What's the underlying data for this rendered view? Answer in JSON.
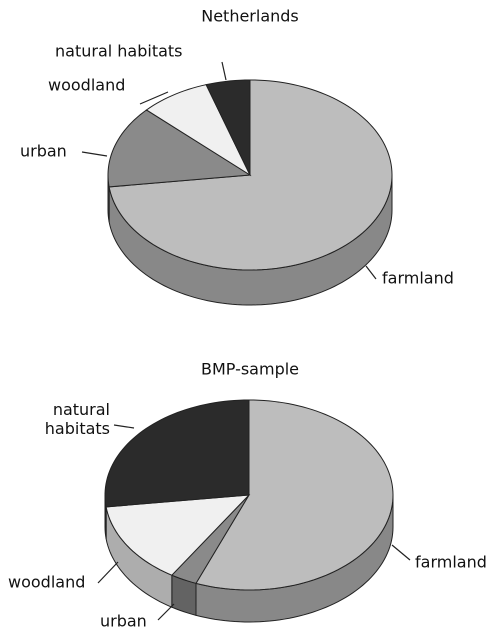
{
  "chart_data": [
    {
      "type": "pie",
      "title": "Netherlands",
      "categories": [
        "farmland",
        "urban",
        "woodland",
        "natural habitats"
      ],
      "values": [
        73,
        14,
        8,
        5
      ],
      "colors": [
        "#bdbdbd",
        "#8a8a8a",
        "#f0f0f0",
        "#2b2b2b"
      ]
    },
    {
      "type": "pie",
      "title": "BMP-sample",
      "categories": [
        "farmland",
        "urban",
        "woodland",
        "natural habitats"
      ],
      "values": [
        56,
        3,
        14,
        27
      ],
      "colors": [
        "#bdbdbd",
        "#8a8a8a",
        "#f0f0f0",
        "#2b2b2b"
      ]
    }
  ]
}
